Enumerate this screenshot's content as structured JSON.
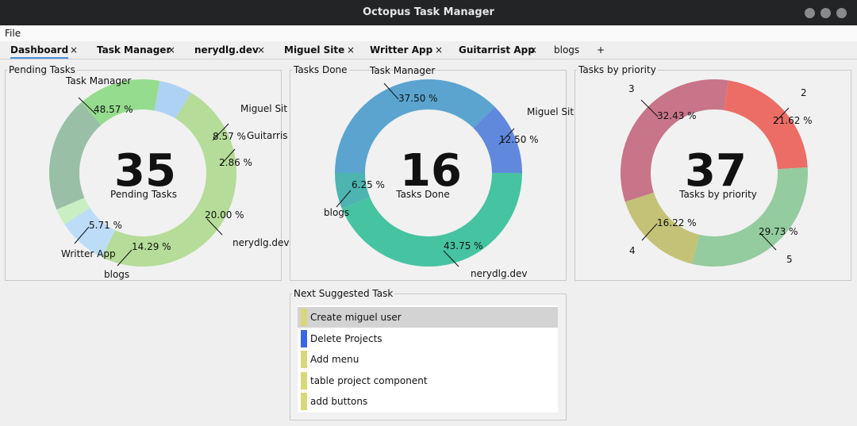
{
  "window": {
    "title": "Octopus Task Manager"
  },
  "menu": {
    "file": "File"
  },
  "tabs": [
    {
      "label": "Dashboard",
      "close": "×"
    },
    {
      "label": "Task Manager",
      "close": "×"
    },
    {
      "label": "nerydlg.dev",
      "close": "×"
    },
    {
      "label": "Miguel Site",
      "close": "×"
    },
    {
      "label": "Writter App",
      "close": "×"
    },
    {
      "label": "Guitarrist App",
      "close": "×"
    },
    {
      "label": "blogs"
    }
  ],
  "add_tab": "+",
  "colors": {
    "task_manager_green": "#b5dc98",
    "miguel_blue": "#bddcf8",
    "guitarrist_green": "#c9eec1",
    "nerydlg_sage": "#99c0a6",
    "blogs_green": "#96dc8f",
    "writter_blue": "#aed2f4",
    "done_blue": "#5aa4cf",
    "done_miguel": "#6089de",
    "done_teal": "#46c3a1",
    "done_blogs": "#4db4b0",
    "prio_3": "#c87489",
    "prio_2": "#eb6d66",
    "prio_5": "#94cb9f",
    "prio_4": "#c3c277",
    "suggest_yellow": "#d9d878",
    "suggest_blue": "#3a66e6"
  },
  "panels": {
    "pending": {
      "title": "Pending Tasks",
      "center_value": "35",
      "center_label": "Pending Tasks",
      "chart_data": {
        "type": "pie",
        "donut": true,
        "slices": [
          {
            "name": "Task Manager",
            "percent": 48.57,
            "label": "48.57 %"
          },
          {
            "name": "Miguel Site",
            "percent": 8.57,
            "label": "8.57 %"
          },
          {
            "name": "Guitarrist App",
            "percent": 2.86,
            "label": "2.86 %"
          },
          {
            "name": "nerydlg.dev",
            "percent": 20.0,
            "label": "20.00 %"
          },
          {
            "name": "blogs",
            "percent": 14.29,
            "label": "14.29 %"
          },
          {
            "name": "Writter App",
            "percent": 5.71,
            "label": "5.71 %"
          }
        ],
        "visible_names": [
          "Task Manager",
          "Miguel Sit",
          "Guitarris",
          "nerydlg.dev",
          "blogs",
          "Writter App"
        ]
      }
    },
    "done": {
      "title": "Tasks Done",
      "center_value": "16",
      "center_label": "Tasks Done",
      "chart_data": {
        "type": "pie",
        "donut": true,
        "slices": [
          {
            "name": "Task Manager",
            "percent": 37.5,
            "label": "37.50 %"
          },
          {
            "name": "Miguel Site",
            "percent": 12.5,
            "label": "12.50 %"
          },
          {
            "name": "nerydlg.dev",
            "percent": 43.75,
            "label": "43.75 %"
          },
          {
            "name": "blogs",
            "percent": 6.25,
            "label": "6.25 %"
          }
        ],
        "visible_names": [
          "Task Manager",
          "Miguel Sit",
          "nerydlg.dev",
          "blogs"
        ]
      }
    },
    "priority": {
      "title": "Tasks by priority",
      "center_value": "37",
      "center_label": "Tasks by priority",
      "chart_data": {
        "type": "pie",
        "donut": true,
        "slices": [
          {
            "name": "3",
            "percent": 32.43,
            "label": "32.43 %"
          },
          {
            "name": "2",
            "percent": 21.62,
            "label": "21.62 %"
          },
          {
            "name": "5",
            "percent": 29.73,
            "label": "29.73 %"
          },
          {
            "name": "4",
            "percent": 16.22,
            "label": "16.22 %"
          }
        ]
      }
    },
    "suggested": {
      "title": "Next Suggested Task",
      "items": [
        {
          "label": "Create miguel user",
          "color": "yellow",
          "selected": true
        },
        {
          "label": "Delete Projects",
          "color": "blue",
          "selected": false
        },
        {
          "label": "Add menu",
          "color": "yellow",
          "selected": false
        },
        {
          "label": "table project component",
          "color": "yellow",
          "selected": false
        },
        {
          "label": "add buttons",
          "color": "yellow",
          "selected": false
        }
      ]
    }
  }
}
